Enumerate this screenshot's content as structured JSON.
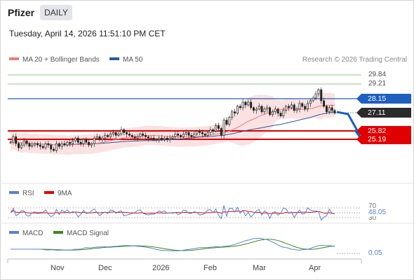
{
  "header": {
    "title": "Pfizer",
    "period_badge": "DAILY",
    "datetime": "Tuesday, April 14, 2026 11:51:10 PM CET"
  },
  "main_legend": [
    {
      "label": "MA 20 + Bollinger Bands",
      "color": "#f07a7a"
    },
    {
      "label": "MA 50",
      "color": "#2a5aa0"
    }
  ],
  "credit": "Research © 2026 Trading Central",
  "colors": {
    "support": "#e00000",
    "resistance": "#1e5fbf",
    "last": "#222222",
    "target": "#7bc46a",
    "candle_up": "#2e7d32",
    "candle_down": "#c62828"
  },
  "levels": {
    "targets": [
      "29.84",
      "29.21"
    ],
    "resistance": "28.15",
    "last": "27.11",
    "supports": [
      "25.82",
      "25.19"
    ]
  },
  "rsi": {
    "legend": [
      {
        "label": "RSI",
        "color": "#5a7fd0"
      },
      {
        "label": "9MA",
        "color": "#e00000"
      }
    ],
    "upper": "70",
    "lower": "30",
    "value": "48.05"
  },
  "macd": {
    "legend": [
      {
        "label": "MACD",
        "color": "#5a7fd0"
      },
      {
        "label": "MACD Signal",
        "color": "#3a8a1a"
      }
    ],
    "value": "0.05"
  },
  "x_axis": [
    "Nov",
    "Dec",
    "2026",
    "Feb",
    "Mar",
    "Apr"
  ],
  "chart_data": {
    "type": "candlestick",
    "title": "Pfizer",
    "ylim": [
      23.5,
      30.5
    ],
    "closes": [
      25.0,
      25.4,
      24.9,
      24.6,
      24.8,
      25.1,
      24.9,
      24.7,
      24.8,
      24.9,
      24.8,
      24.7,
      24.6,
      24.9,
      24.8,
      24.5,
      24.4,
      24.9,
      24.7,
      24.9,
      24.8,
      25.0,
      24.9,
      25.1,
      25.3,
      25.0,
      24.9,
      25.2,
      25.0,
      24.8,
      24.9,
      25.3,
      25.4,
      25.2,
      25.3,
      25.5,
      25.4,
      25.6,
      25.7,
      25.5,
      25.6,
      25.9,
      25.7,
      25.6,
      25.5,
      25.4,
      25.3,
      25.4,
      25.6,
      25.5,
      25.4,
      25.3,
      25.3,
      25.2,
      25.2,
      25.3,
      25.2,
      25.3,
      25.2,
      25.3,
      25.4,
      25.6,
      25.5,
      25.4,
      25.6,
      25.7,
      25.5,
      25.4,
      25.6,
      25.8,
      25.7,
      25.6,
      25.5,
      25.7,
      25.9,
      25.8,
      26.2,
      26.0,
      25.5,
      26.6,
      26.3,
      26.8,
      27.2,
      27.1,
      27.6,
      27.5,
      27.9,
      27.7,
      27.9,
      27.5,
      27.3,
      27.4,
      27.6,
      27.2,
      27.4,
      27.5,
      27.0,
      27.2,
      27.4,
      27.1,
      26.9,
      27.3,
      27.6,
      27.5,
      27.7,
      27.3,
      27.4,
      27.8,
      27.6,
      27.4,
      27.8,
      28.0,
      28.2,
      28.5,
      28.8,
      28.0,
      27.6,
      27.2,
      27.5,
      27.3,
      27.11
    ],
    "ma20_end": 27.4,
    "ma50_end": 27.0,
    "projection": [
      27.11,
      27.0,
      25.82
    ]
  }
}
